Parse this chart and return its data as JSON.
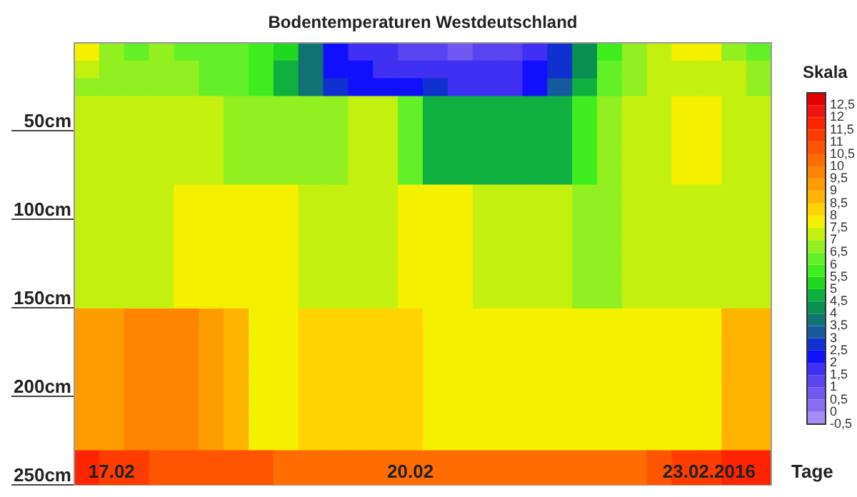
{
  "chart_data": {
    "type": "heatmap",
    "title": "Bodentemperaturen Westdeutschland",
    "xlabel": "Tage",
    "clabel": "Skala",
    "categories": [
      null,
      "17.02",
      null,
      null,
      null,
      null,
      null,
      null,
      null,
      null,
      null,
      null,
      null,
      "20.02",
      null,
      null,
      null,
      null,
      null,
      null,
      null,
      null,
      null,
      null,
      null,
      "23.02.2016",
      null,
      null
    ],
    "y_categories": [
      null,
      null,
      null,
      null,
      "50cm",
      null,
      null,
      null,
      null,
      "100cm",
      null,
      null,
      null,
      null,
      "150cm",
      null,
      null,
      null,
      null,
      "200cm",
      null,
      null,
      null,
      null,
      "250cm"
    ],
    "cells": [
      [
        7.5,
        6.5,
        6,
        6.5,
        6,
        6,
        6,
        5.5,
        5,
        3.5,
        2,
        1.5,
        1.5,
        1,
        1,
        0.5,
        1,
        1,
        1.5,
        2.5,
        4,
        5.5,
        6.5,
        7,
        7.5,
        7.5,
        6.5,
        6
      ],
      [
        7,
        6.5,
        6.5,
        6.5,
        6.5,
        6,
        6,
        5.5,
        4.5,
        3.5,
        2,
        2,
        1.5,
        1.5,
        1.5,
        1.5,
        1.5,
        1.5,
        2,
        2.5,
        4,
        6,
        6.5,
        7,
        7,
        7,
        7,
        6.5
      ],
      [
        6.5,
        6.5,
        6.5,
        6.5,
        6.5,
        6,
        6,
        5.5,
        4.5,
        3.5,
        2.5,
        2,
        2,
        2,
        2.5,
        1.5,
        1.5,
        1.5,
        2,
        3,
        4.5,
        6,
        6.5,
        7,
        7,
        7,
        7,
        6.5
      ],
      [
        7,
        7,
        7,
        7,
        7,
        7,
        6.5,
        6.5,
        6.5,
        6.5,
        6.5,
        7,
        7,
        6,
        4.5,
        4.5,
        4.5,
        4.5,
        4.5,
        4.5,
        5.5,
        6.5,
        7,
        7,
        7.5,
        7.5,
        7,
        7
      ],
      [
        7,
        7,
        7,
        7,
        7,
        7,
        6.5,
        6.5,
        6.5,
        6.5,
        6.5,
        7,
        7,
        6,
        4.5,
        4.5,
        4.5,
        4.5,
        4.5,
        4.5,
        5.5,
        6.5,
        7,
        7,
        7.5,
        7.5,
        7,
        7
      ],
      [
        7,
        7,
        7,
        7,
        7,
        7,
        6.5,
        6.5,
        6.5,
        6.5,
        6.5,
        7,
        7,
        6,
        4.5,
        4.5,
        4.5,
        4.5,
        4.5,
        4.5,
        5.5,
        6.5,
        7,
        7,
        7.5,
        7.5,
        7,
        7
      ],
      [
        7,
        7,
        7,
        7,
        7,
        7,
        6.5,
        6.5,
        6.5,
        6.5,
        6.5,
        7,
        7,
        6,
        4.5,
        4.5,
        4.5,
        4.5,
        4.5,
        4.5,
        5.5,
        6.5,
        7,
        7,
        7.5,
        7.5,
        7,
        7
      ],
      [
        7,
        7,
        7,
        7,
        7,
        7,
        6.5,
        6.5,
        6.5,
        6.5,
        6.5,
        7,
        7,
        6,
        4.5,
        4.5,
        4.5,
        4.5,
        4.5,
        4.5,
        5.5,
        6.5,
        7,
        7,
        7.5,
        7.5,
        7,
        7
      ],
      [
        7,
        7,
        7,
        7,
        7.5,
        7.5,
        7.5,
        7.5,
        7.5,
        7,
        7,
        7,
        7,
        7.5,
        7.5,
        7.5,
        7,
        7,
        7,
        7,
        6.5,
        6.5,
        7,
        7,
        7,
        7,
        7,
        7
      ],
      [
        7,
        7,
        7,
        7,
        7.5,
        7.5,
        7.5,
        7.5,
        7.5,
        7,
        7,
        7,
        7,
        7.5,
        7.5,
        7.5,
        7,
        7,
        7,
        7,
        6.5,
        6.5,
        7,
        7,
        7,
        7,
        7,
        7
      ],
      [
        7,
        7,
        7,
        7,
        7.5,
        7.5,
        7.5,
        7.5,
        7.5,
        7,
        7,
        7,
        7,
        7.5,
        7.5,
        7.5,
        7,
        7,
        7,
        7,
        6.5,
        6.5,
        7,
        7,
        7,
        7,
        7,
        7
      ],
      [
        7,
        7,
        7,
        7,
        7.5,
        7.5,
        7.5,
        7.5,
        7.5,
        7,
        7,
        7,
        7,
        7.5,
        7.5,
        7.5,
        7,
        7,
        7,
        7,
        6.5,
        6.5,
        7,
        7,
        7,
        7,
        7,
        7
      ],
      [
        7,
        7,
        7,
        7,
        7.5,
        7.5,
        7.5,
        7.5,
        7.5,
        7,
        7,
        7,
        7,
        7.5,
        7.5,
        7.5,
        7,
        7,
        7,
        7,
        6.5,
        6.5,
        7,
        7,
        7,
        7,
        7,
        7
      ],
      [
        7,
        7,
        7,
        7,
        7.5,
        7.5,
        7.5,
        7.5,
        7.5,
        7,
        7,
        7,
        7,
        7.5,
        7.5,
        7.5,
        7,
        7,
        7,
        7,
        6.5,
        6.5,
        7,
        7,
        7,
        7,
        7,
        7
      ],
      [
        7,
        7,
        7,
        7,
        7.5,
        7.5,
        7.5,
        7.5,
        7.5,
        7,
        7,
        7,
        7,
        7.5,
        7.5,
        7.5,
        7,
        7,
        7,
        7,
        6.5,
        6.5,
        7,
        7,
        7,
        7,
        7,
        7
      ],
      [
        9,
        9,
        9.5,
        9.5,
        9.5,
        9,
        8.5,
        7.5,
        7.5,
        8,
        8,
        8,
        8,
        8,
        7.5,
        7.5,
        7.5,
        7.5,
        7.5,
        7.5,
        7.5,
        7.5,
        7.5,
        7.5,
        7.5,
        7.5,
        8.5,
        8.5
      ],
      [
        9,
        9,
        9.5,
        9.5,
        9.5,
        9,
        8.5,
        7.5,
        7.5,
        8,
        8,
        8,
        8,
        8,
        7.5,
        7.5,
        7.5,
        7.5,
        7.5,
        7.5,
        7.5,
        7.5,
        7.5,
        7.5,
        7.5,
        7.5,
        8.5,
        8.5
      ],
      [
        9,
        9,
        9.5,
        9.5,
        9.5,
        9,
        8.5,
        7.5,
        7.5,
        8,
        8,
        8,
        8,
        8,
        7.5,
        7.5,
        7.5,
        7.5,
        7.5,
        7.5,
        7.5,
        7.5,
        7.5,
        7.5,
        7.5,
        7.5,
        8.5,
        8.5
      ],
      [
        9,
        9,
        9.5,
        9.5,
        9.5,
        9,
        8.5,
        7.5,
        7.5,
        8,
        8,
        8,
        8,
        8,
        7.5,
        7.5,
        7.5,
        7.5,
        7.5,
        7.5,
        7.5,
        7.5,
        7.5,
        7.5,
        7.5,
        7.5,
        8.5,
        8.5
      ],
      [
        9,
        9,
        9.5,
        9.5,
        9.5,
        9,
        8.5,
        7.5,
        7.5,
        8,
        8,
        8,
        8,
        8,
        7.5,
        7.5,
        7.5,
        7.5,
        7.5,
        7.5,
        7.5,
        7.5,
        7.5,
        7.5,
        7.5,
        7.5,
        8.5,
        8.5
      ],
      [
        9,
        9,
        9.5,
        9.5,
        9.5,
        9,
        8.5,
        7.5,
        7.5,
        8,
        8,
        8,
        8,
        8,
        7.5,
        7.5,
        7.5,
        7.5,
        7.5,
        7.5,
        7.5,
        7.5,
        7.5,
        7.5,
        7.5,
        7.5,
        8.5,
        8.5
      ],
      [
        9,
        9,
        9.5,
        9.5,
        9.5,
        9,
        8.5,
        7.5,
        7.5,
        8,
        8,
        8,
        8,
        8,
        7.5,
        7.5,
        7.5,
        7.5,
        7.5,
        7.5,
        7.5,
        7.5,
        7.5,
        7.5,
        7.5,
        7.5,
        8.5,
        8.5
      ],
      [
        9,
        9,
        9.5,
        9.5,
        9.5,
        9,
        8.5,
        7.5,
        7.5,
        8,
        8,
        8,
        8,
        8,
        7.5,
        7.5,
        7.5,
        7.5,
        7.5,
        7.5,
        7.5,
        7.5,
        7.5,
        7.5,
        7.5,
        7.5,
        8.5,
        8.5
      ],
      [
        11.5,
        11,
        11,
        10.5,
        10.5,
        10.5,
        10.5,
        10.5,
        10,
        10,
        10,
        10,
        10,
        10,
        10,
        10,
        10,
        10,
        10,
        10,
        10,
        10,
        10,
        10.5,
        11,
        11,
        11.5,
        11.5
      ],
      [
        11.5,
        11,
        11,
        10.5,
        10.5,
        10.5,
        10.5,
        10.5,
        10,
        10,
        10,
        10,
        10,
        10,
        10,
        10,
        10,
        10,
        10,
        10,
        10,
        10,
        10,
        10.5,
        11,
        11,
        11.5,
        11.5
      ]
    ],
    "clim": [
      -0.5,
      13
    ],
    "cticks": [
      {
        "value": -0.5,
        "label": "-0,5"
      },
      0,
      {
        "value": 0.5,
        "label": "0,5"
      },
      1,
      {
        "value": 1.5,
        "label": "1,5"
      },
      2,
      {
        "value": 2.5,
        "label": "2,5"
      },
      3,
      {
        "value": 3.5,
        "label": "3,5"
      },
      4,
      {
        "value": 4.5,
        "label": "4,5"
      },
      5,
      {
        "value": 5.5,
        "label": "5,5"
      },
      6,
      {
        "value": 6.5,
        "label": "6,5"
      },
      7,
      {
        "value": 7.5,
        "label": "7,5"
      },
      8,
      {
        "value": 8.5,
        "label": "8,5"
      },
      9,
      {
        "value": 9.5,
        "label": "9,5"
      },
      10,
      {
        "value": 10.5,
        "label": "10,5"
      },
      11,
      {
        "value": 11.5,
        "label": "11,5"
      },
      12,
      {
        "value": 12.5,
        "label": "12,5"
      }
    ]
  }
}
